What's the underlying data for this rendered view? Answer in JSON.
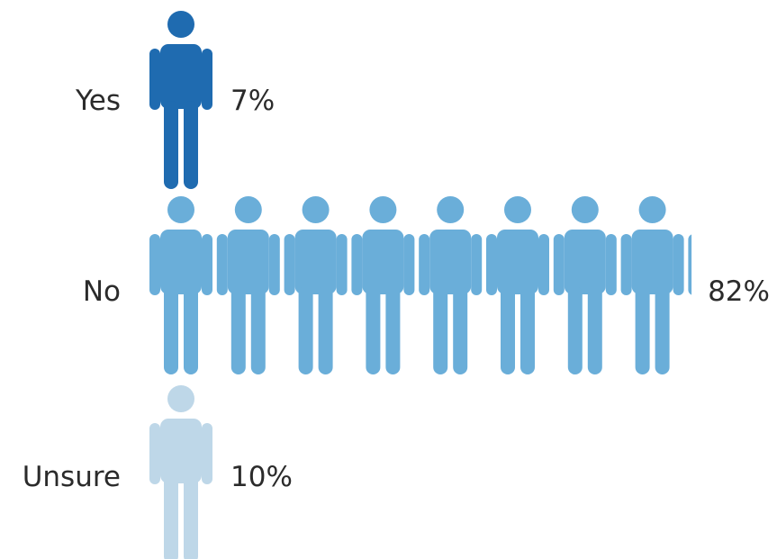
{
  "chart_data": {
    "type": "bar",
    "categories": [
      "Yes",
      "No",
      "Unsure"
    ],
    "values": [
      7,
      82,
      10
    ],
    "value_labels": [
      "7%",
      "82%",
      "10%"
    ],
    "colors": [
      "#1f6bb0",
      "#6aaed9",
      "#bed7e8"
    ],
    "icon": "person-icon",
    "xlim": [
      0,
      100
    ]
  }
}
